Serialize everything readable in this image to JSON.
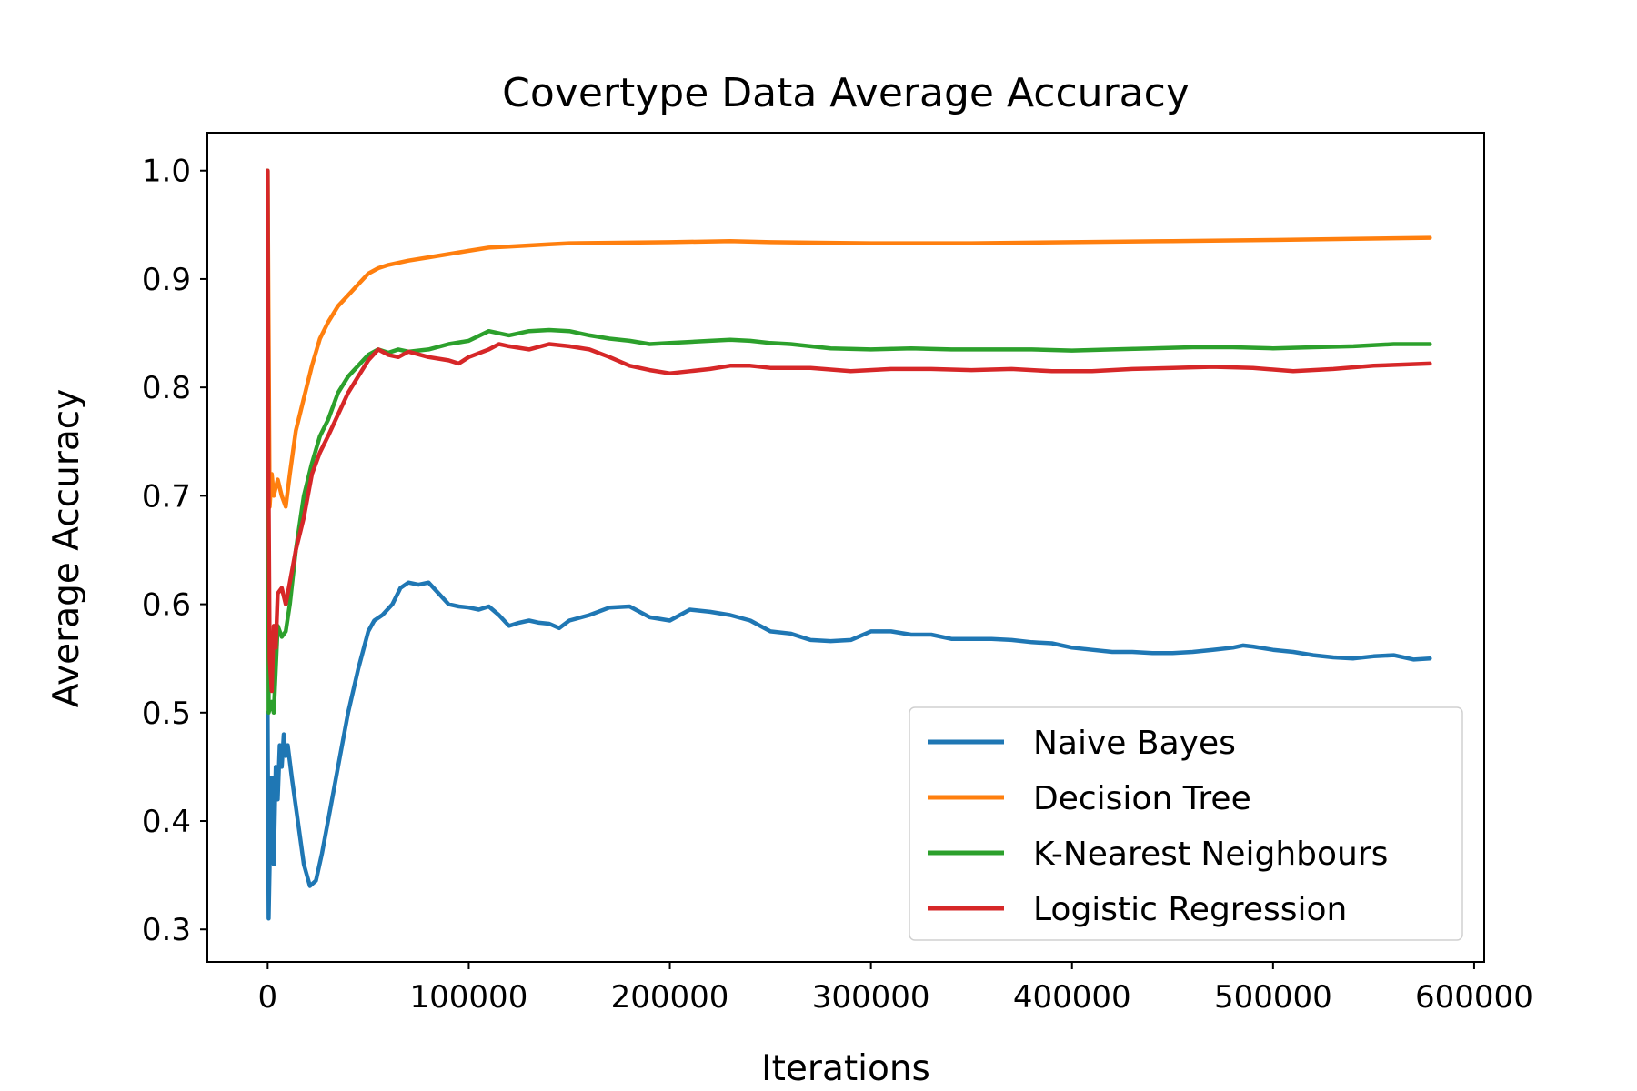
{
  "chart_data": {
    "type": "line",
    "title": "Covertype Data Average Accuracy",
    "xlabel": "Iterations",
    "ylabel": "Average Accuracy",
    "xlim": [
      -30000,
      605000
    ],
    "ylim": [
      0.27,
      1.035
    ],
    "xticks": [
      0,
      100000,
      200000,
      300000,
      400000,
      500000,
      600000
    ],
    "xtick_labels": [
      "0",
      "100000",
      "200000",
      "300000",
      "400000",
      "500000",
      "600000"
    ],
    "yticks": [
      0.3,
      0.4,
      0.5,
      0.6,
      0.7,
      0.8,
      0.9,
      1.0
    ],
    "ytick_labels": [
      "0.3",
      "0.4",
      "0.5",
      "0.6",
      "0.7",
      "0.8",
      "0.9",
      "1.0"
    ],
    "grid": false,
    "legend": {
      "position": "lower-right"
    },
    "series": [
      {
        "name": "Naive Bayes",
        "color": "#1f77b4",
        "points": [
          [
            0,
            0.5
          ],
          [
            500,
            0.31
          ],
          [
            1000,
            0.36
          ],
          [
            2000,
            0.44
          ],
          [
            3000,
            0.36
          ],
          [
            4000,
            0.45
          ],
          [
            5000,
            0.42
          ],
          [
            6000,
            0.47
          ],
          [
            7000,
            0.45
          ],
          [
            8000,
            0.48
          ],
          [
            9000,
            0.46
          ],
          [
            10000,
            0.47
          ],
          [
            12000,
            0.44
          ],
          [
            15000,
            0.4
          ],
          [
            18000,
            0.36
          ],
          [
            21000,
            0.34
          ],
          [
            24000,
            0.345
          ],
          [
            27000,
            0.37
          ],
          [
            30000,
            0.4
          ],
          [
            33000,
            0.43
          ],
          [
            36000,
            0.46
          ],
          [
            40000,
            0.5
          ],
          [
            45000,
            0.54
          ],
          [
            50000,
            0.575
          ],
          [
            53000,
            0.585
          ],
          [
            57000,
            0.59
          ],
          [
            62000,
            0.6
          ],
          [
            66000,
            0.615
          ],
          [
            70000,
            0.62
          ],
          [
            75000,
            0.618
          ],
          [
            80000,
            0.62
          ],
          [
            85000,
            0.61
          ],
          [
            90000,
            0.6
          ],
          [
            95000,
            0.598
          ],
          [
            100000,
            0.597
          ],
          [
            105000,
            0.595
          ],
          [
            110000,
            0.598
          ],
          [
            115000,
            0.59
          ],
          [
            120000,
            0.58
          ],
          [
            125000,
            0.583
          ],
          [
            130000,
            0.585
          ],
          [
            135000,
            0.583
          ],
          [
            140000,
            0.582
          ],
          [
            145000,
            0.578
          ],
          [
            150000,
            0.585
          ],
          [
            160000,
            0.59
          ],
          [
            170000,
            0.597
          ],
          [
            180000,
            0.598
          ],
          [
            190000,
            0.588
          ],
          [
            200000,
            0.585
          ],
          [
            210000,
            0.595
          ],
          [
            220000,
            0.593
          ],
          [
            230000,
            0.59
          ],
          [
            240000,
            0.585
          ],
          [
            250000,
            0.575
          ],
          [
            260000,
            0.573
          ],
          [
            270000,
            0.567
          ],
          [
            280000,
            0.566
          ],
          [
            290000,
            0.567
          ],
          [
            300000,
            0.575
          ],
          [
            310000,
            0.575
          ],
          [
            320000,
            0.572
          ],
          [
            330000,
            0.572
          ],
          [
            340000,
            0.568
          ],
          [
            350000,
            0.568
          ],
          [
            360000,
            0.568
          ],
          [
            370000,
            0.567
          ],
          [
            380000,
            0.565
          ],
          [
            390000,
            0.564
          ],
          [
            400000,
            0.56
          ],
          [
            410000,
            0.558
          ],
          [
            420000,
            0.556
          ],
          [
            430000,
            0.556
          ],
          [
            440000,
            0.555
          ],
          [
            450000,
            0.555
          ],
          [
            460000,
            0.556
          ],
          [
            470000,
            0.558
          ],
          [
            480000,
            0.56
          ],
          [
            485000,
            0.562
          ],
          [
            490000,
            0.561
          ],
          [
            500000,
            0.558
          ],
          [
            510000,
            0.556
          ],
          [
            520000,
            0.553
          ],
          [
            530000,
            0.551
          ],
          [
            540000,
            0.55
          ],
          [
            550000,
            0.552
          ],
          [
            560000,
            0.553
          ],
          [
            570000,
            0.549
          ],
          [
            578000,
            0.55
          ]
        ]
      },
      {
        "name": "Decision Tree",
        "color": "#ff7f0e",
        "points": [
          [
            0,
            1.0
          ],
          [
            1000,
            0.69
          ],
          [
            2000,
            0.72
          ],
          [
            3000,
            0.7
          ],
          [
            5000,
            0.715
          ],
          [
            7000,
            0.7
          ],
          [
            9000,
            0.69
          ],
          [
            11000,
            0.72
          ],
          [
            14000,
            0.76
          ],
          [
            18000,
            0.79
          ],
          [
            22000,
            0.82
          ],
          [
            26000,
            0.845
          ],
          [
            30000,
            0.86
          ],
          [
            35000,
            0.875
          ],
          [
            40000,
            0.885
          ],
          [
            45000,
            0.895
          ],
          [
            50000,
            0.905
          ],
          [
            55000,
            0.91
          ],
          [
            60000,
            0.913
          ],
          [
            70000,
            0.917
          ],
          [
            80000,
            0.92
          ],
          [
            90000,
            0.923
          ],
          [
            100000,
            0.926
          ],
          [
            110000,
            0.929
          ],
          [
            120000,
            0.93
          ],
          [
            130000,
            0.931
          ],
          [
            140000,
            0.932
          ],
          [
            150000,
            0.933
          ],
          [
            200000,
            0.934
          ],
          [
            230000,
            0.935
          ],
          [
            250000,
            0.934
          ],
          [
            300000,
            0.933
          ],
          [
            350000,
            0.933
          ],
          [
            400000,
            0.934
          ],
          [
            450000,
            0.935
          ],
          [
            500000,
            0.936
          ],
          [
            540000,
            0.937
          ],
          [
            578000,
            0.938
          ]
        ]
      },
      {
        "name": "K-Nearest Neighbours",
        "color": "#2ca02c",
        "points": [
          [
            0,
            1.0
          ],
          [
            500,
            0.5
          ],
          [
            2000,
            0.51
          ],
          [
            3000,
            0.5
          ],
          [
            5000,
            0.58
          ],
          [
            7000,
            0.57
          ],
          [
            9000,
            0.575
          ],
          [
            11000,
            0.6
          ],
          [
            14000,
            0.65
          ],
          [
            18000,
            0.7
          ],
          [
            22000,
            0.73
          ],
          [
            26000,
            0.755
          ],
          [
            30000,
            0.77
          ],
          [
            35000,
            0.795
          ],
          [
            40000,
            0.81
          ],
          [
            45000,
            0.82
          ],
          [
            50000,
            0.83
          ],
          [
            55000,
            0.835
          ],
          [
            60000,
            0.832
          ],
          [
            65000,
            0.835
          ],
          [
            70000,
            0.833
          ],
          [
            80000,
            0.835
          ],
          [
            90000,
            0.84
          ],
          [
            100000,
            0.843
          ],
          [
            110000,
            0.852
          ],
          [
            120000,
            0.848
          ],
          [
            130000,
            0.852
          ],
          [
            140000,
            0.853
          ],
          [
            150000,
            0.852
          ],
          [
            160000,
            0.848
          ],
          [
            170000,
            0.845
          ],
          [
            180000,
            0.843
          ],
          [
            190000,
            0.84
          ],
          [
            200000,
            0.841
          ],
          [
            210000,
            0.842
          ],
          [
            220000,
            0.843
          ],
          [
            230000,
            0.844
          ],
          [
            240000,
            0.843
          ],
          [
            250000,
            0.841
          ],
          [
            260000,
            0.84
          ],
          [
            270000,
            0.838
          ],
          [
            280000,
            0.836
          ],
          [
            300000,
            0.835
          ],
          [
            320000,
            0.836
          ],
          [
            340000,
            0.835
          ],
          [
            360000,
            0.835
          ],
          [
            380000,
            0.835
          ],
          [
            400000,
            0.834
          ],
          [
            420000,
            0.835
          ],
          [
            440000,
            0.836
          ],
          [
            460000,
            0.837
          ],
          [
            480000,
            0.837
          ],
          [
            500000,
            0.836
          ],
          [
            520000,
            0.837
          ],
          [
            540000,
            0.838
          ],
          [
            560000,
            0.84
          ],
          [
            578000,
            0.84
          ]
        ]
      },
      {
        "name": "Logistic Regression",
        "color": "#d62728",
        "points": [
          [
            0,
            1.0
          ],
          [
            500,
            0.7
          ],
          [
            1000,
            0.55
          ],
          [
            2000,
            0.52
          ],
          [
            3000,
            0.58
          ],
          [
            4000,
            0.56
          ],
          [
            5000,
            0.61
          ],
          [
            7000,
            0.615
          ],
          [
            9000,
            0.6
          ],
          [
            11000,
            0.62
          ],
          [
            14000,
            0.65
          ],
          [
            18000,
            0.68
          ],
          [
            22000,
            0.72
          ],
          [
            26000,
            0.74
          ],
          [
            30000,
            0.755
          ],
          [
            35000,
            0.775
          ],
          [
            40000,
            0.795
          ],
          [
            45000,
            0.81
          ],
          [
            50000,
            0.825
          ],
          [
            55000,
            0.835
          ],
          [
            60000,
            0.83
          ],
          [
            65000,
            0.828
          ],
          [
            70000,
            0.833
          ],
          [
            80000,
            0.828
          ],
          [
            90000,
            0.825
          ],
          [
            95000,
            0.822
          ],
          [
            100000,
            0.828
          ],
          [
            110000,
            0.835
          ],
          [
            115000,
            0.84
          ],
          [
            120000,
            0.838
          ],
          [
            130000,
            0.835
          ],
          [
            140000,
            0.84
          ],
          [
            150000,
            0.838
          ],
          [
            160000,
            0.835
          ],
          [
            170000,
            0.828
          ],
          [
            180000,
            0.82
          ],
          [
            190000,
            0.816
          ],
          [
            200000,
            0.813
          ],
          [
            210000,
            0.815
          ],
          [
            220000,
            0.817
          ],
          [
            230000,
            0.82
          ],
          [
            240000,
            0.82
          ],
          [
            250000,
            0.818
          ],
          [
            270000,
            0.818
          ],
          [
            290000,
            0.815
          ],
          [
            310000,
            0.817
          ],
          [
            330000,
            0.817
          ],
          [
            350000,
            0.816
          ],
          [
            370000,
            0.817
          ],
          [
            390000,
            0.815
          ],
          [
            410000,
            0.815
          ],
          [
            430000,
            0.817
          ],
          [
            450000,
            0.818
          ],
          [
            470000,
            0.819
          ],
          [
            490000,
            0.818
          ],
          [
            510000,
            0.815
          ],
          [
            530000,
            0.817
          ],
          [
            550000,
            0.82
          ],
          [
            578000,
            0.822
          ]
        ]
      }
    ]
  }
}
